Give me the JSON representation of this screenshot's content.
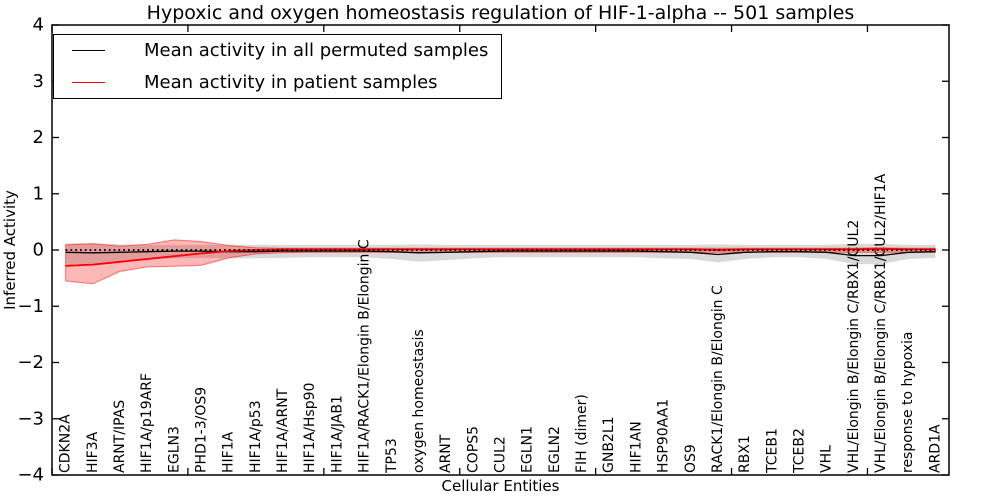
{
  "title": "Hypoxic and oxygen homeostasis regulation of HIF-1-alpha -- 501 samples",
  "axes": {
    "ylabel": "Inferred Activity",
    "xlabel": "Cellular Entities"
  },
  "legend": {
    "entries": [
      {
        "label": "Mean activity in all permuted samples",
        "color": "#000000"
      },
      {
        "label": "Mean activity in patient samples",
        "color": "#ff0000"
      }
    ]
  },
  "chart_data": {
    "type": "line",
    "title": "Hypoxic and oxygen homeostasis regulation of HIF-1-alpha -- 501 samples",
    "xlabel": "Cellular Entities",
    "ylabel": "Inferred Activity",
    "ylim": [
      -4,
      4
    ],
    "grid": false,
    "legend_position": "upper left",
    "yticks": [
      [
        4,
        "4"
      ],
      [
        3,
        "3"
      ],
      [
        2,
        "2"
      ],
      [
        1,
        "1"
      ],
      [
        0,
        "0"
      ],
      [
        -1,
        "−1"
      ],
      [
        -2,
        "−2"
      ],
      [
        -3,
        "−3"
      ],
      [
        -4,
        "−4"
      ]
    ],
    "xticks_numeric": [
      0,
      5,
      10,
      15,
      20,
      25,
      30
    ],
    "categories": [
      "CDKN2A",
      "HIF3A",
      "ARNT/IPAS",
      "HIF1A/p19ARF",
      "EGLN3",
      "PHD1-3/OS9",
      "HIF1A",
      "HIF1A/p53",
      "HIF1A/ARNT",
      "HIF1A/Hsp90",
      "HIF1A/JAB1",
      "HIF1A/RACK1/Elongin B/Elongin C",
      "TP53",
      "oxygen homeostasis",
      "ARNT",
      "COPS5",
      "CUL2",
      "EGLN1",
      "EGLN2",
      "FIH (dimer)",
      "GNB2L1",
      "HIF1AN",
      "HSP90AA1",
      "OS9",
      "RACK1/Elongin B/Elongin C",
      "RBX1",
      "TCEB1",
      "TCEB2",
      "VHL",
      "VHL/Elongin B/Elongin C/RBX1/CUL2",
      "VHL/Elongin B/Elongin C/RBX1/CUL2/HIF1A",
      "response to hypoxia",
      "ARD1A"
    ],
    "reference_line": {
      "y": 0,
      "style": "dotted",
      "color": "#000000"
    },
    "series": [
      {
        "name": "Mean activity in all permuted samples",
        "color": "#000000",
        "line_width": 1.3,
        "band_color": "rgba(0,0,0,0.15)",
        "band_edge": "none",
        "values": [
          -0.04,
          -0.05,
          -0.04,
          -0.03,
          -0.02,
          -0.02,
          -0.03,
          -0.03,
          -0.02,
          -0.02,
          -0.02,
          -0.02,
          -0.03,
          -0.05,
          -0.04,
          -0.03,
          -0.02,
          -0.02,
          -0.02,
          -0.02,
          -0.02,
          -0.02,
          -0.03,
          -0.04,
          -0.08,
          -0.04,
          -0.03,
          -0.03,
          -0.04,
          -0.1,
          -0.1,
          -0.04,
          -0.03
        ],
        "band_upper": [
          0.12,
          0.12,
          0.1,
          0.09,
          0.09,
          0.09,
          0.09,
          0.09,
          0.09,
          0.09,
          0.09,
          0.09,
          0.09,
          0.1,
          0.09,
          0.09,
          0.09,
          0.09,
          0.09,
          0.09,
          0.09,
          0.09,
          0.09,
          0.09,
          0.1,
          0.09,
          0.09,
          0.09,
          0.09,
          0.11,
          0.11,
          0.09,
          0.09
        ],
        "band_lower": [
          -0.24,
          -0.26,
          -0.2,
          -0.16,
          -0.15,
          -0.14,
          -0.15,
          -0.15,
          -0.14,
          -0.13,
          -0.13,
          -0.13,
          -0.16,
          -0.21,
          -0.18,
          -0.15,
          -0.13,
          -0.13,
          -0.13,
          -0.13,
          -0.13,
          -0.13,
          -0.15,
          -0.16,
          -0.22,
          -0.16,
          -0.13,
          -0.13,
          -0.16,
          -0.25,
          -0.25,
          -0.16,
          -0.14
        ]
      },
      {
        "name": "Mean activity in patient samples",
        "color": "#ff0000",
        "line_width": 1.8,
        "band_color": "rgba(255,0,0,0.28)",
        "band_edge": "rgba(255,0,0,0.5)",
        "values": [
          -0.28,
          -0.26,
          -0.21,
          -0.16,
          -0.11,
          -0.06,
          -0.02,
          0.0,
          0.01,
          0.01,
          0.01,
          0.01,
          0.01,
          0.01,
          0.01,
          0.01,
          0.01,
          0.01,
          0.01,
          0.01,
          0.01,
          0.01,
          0.01,
          0.01,
          0.0,
          0.01,
          0.01,
          0.01,
          0.01,
          0.01,
          0.02,
          0.01,
          0.01
        ],
        "band_upper": [
          0.09,
          0.11,
          0.07,
          0.1,
          0.18,
          0.15,
          0.08,
          0.04,
          0.03,
          0.03,
          0.03,
          0.03,
          0.03,
          0.03,
          0.03,
          0.03,
          0.03,
          0.03,
          0.03,
          0.03,
          0.03,
          0.03,
          0.03,
          0.03,
          0.03,
          0.03,
          0.03,
          0.03,
          0.03,
          0.03,
          0.04,
          0.03,
          0.03
        ],
        "band_lower": [
          -0.55,
          -0.6,
          -0.38,
          -0.3,
          -0.29,
          -0.27,
          -0.14,
          -0.07,
          -0.05,
          -0.04,
          -0.04,
          -0.04,
          -0.04,
          -0.04,
          -0.04,
          -0.04,
          -0.04,
          -0.04,
          -0.04,
          -0.04,
          -0.04,
          -0.04,
          -0.04,
          -0.04,
          -0.04,
          -0.04,
          -0.04,
          -0.04,
          -0.04,
          -0.04,
          -0.04,
          -0.04,
          -0.04
        ]
      }
    ]
  }
}
